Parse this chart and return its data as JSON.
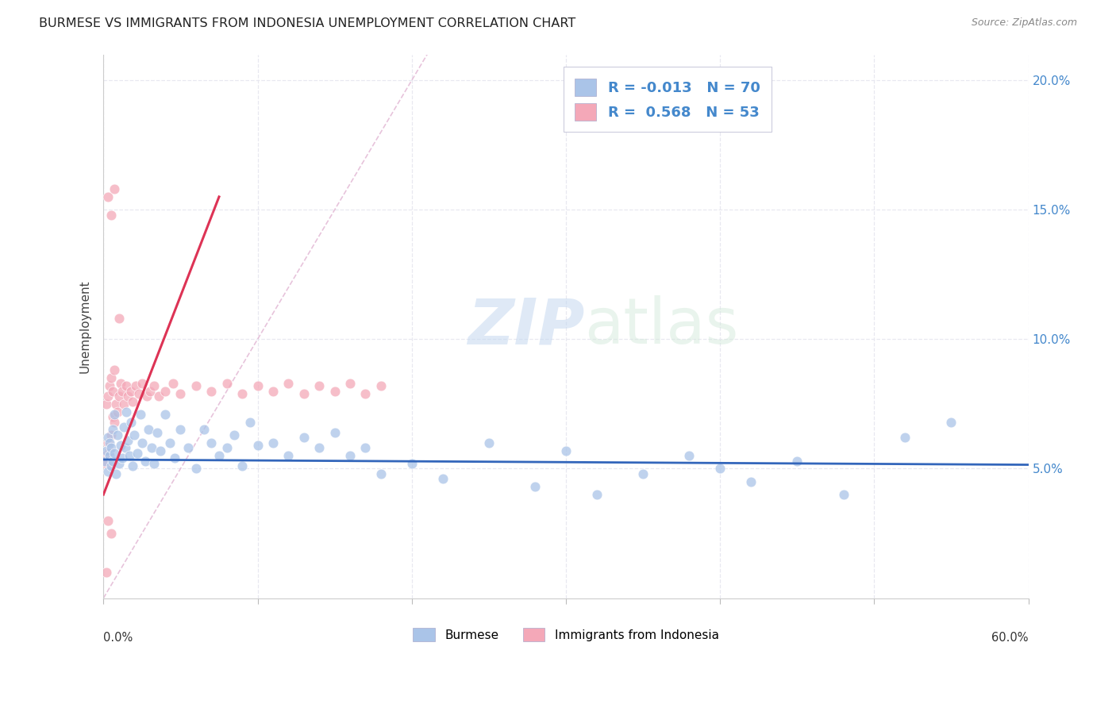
{
  "title": "BURMESE VS IMMIGRANTS FROM INDONESIA UNEMPLOYMENT CORRELATION CHART",
  "source": "Source: ZipAtlas.com",
  "ylabel": "Unemployment",
  "watermark_zip": "ZIP",
  "watermark_atlas": "atlas",
  "legend_blue_r": "-0.013",
  "legend_blue_n": "70",
  "legend_pink_r": "0.568",
  "legend_pink_n": "53",
  "blue_color": "#aac4e8",
  "pink_color": "#f4a8b8",
  "blue_line_color": "#3366bb",
  "pink_line_color": "#dd3355",
  "diag_line_color": "#ddaabb",
  "grid_color": "#e8e8f0",
  "background_color": "#ffffff",
  "axis_tick_color": "#4488cc",
  "title_color": "#222222",
  "source_color": "#888888",
  "title_fontsize": 11.5,
  "source_fontsize": 9,
  "ylabel_fontsize": 11,
  "xmin": 0.0,
  "xmax": 0.6,
  "ymin": 0.0,
  "ymax": 0.21,
  "yticks": [
    0.05,
    0.1,
    0.15,
    0.2
  ],
  "ytick_labels": [
    "5.0%",
    "10.0%",
    "15.0%",
    "20.0%"
  ],
  "blue_scatter_x": [
    0.001,
    0.002,
    0.003,
    0.003,
    0.004,
    0.004,
    0.005,
    0.005,
    0.006,
    0.006,
    0.007,
    0.007,
    0.008,
    0.009,
    0.01,
    0.011,
    0.012,
    0.013,
    0.014,
    0.015,
    0.016,
    0.017,
    0.018,
    0.019,
    0.02,
    0.022,
    0.024,
    0.025,
    0.027,
    0.029,
    0.031,
    0.033,
    0.035,
    0.037,
    0.04,
    0.043,
    0.046,
    0.05,
    0.055,
    0.06,
    0.065,
    0.07,
    0.075,
    0.08,
    0.085,
    0.09,
    0.095,
    0.1,
    0.11,
    0.12,
    0.13,
    0.14,
    0.15,
    0.16,
    0.17,
    0.18,
    0.2,
    0.22,
    0.25,
    0.28,
    0.3,
    0.32,
    0.35,
    0.38,
    0.4,
    0.42,
    0.45,
    0.48,
    0.52,
    0.55
  ],
  "blue_scatter_y": [
    0.053,
    0.057,
    0.049,
    0.062,
    0.055,
    0.06,
    0.051,
    0.058,
    0.053,
    0.065,
    0.056,
    0.071,
    0.048,
    0.063,
    0.052,
    0.059,
    0.054,
    0.066,
    0.058,
    0.072,
    0.061,
    0.055,
    0.068,
    0.051,
    0.063,
    0.056,
    0.071,
    0.06,
    0.053,
    0.065,
    0.058,
    0.052,
    0.064,
    0.057,
    0.071,
    0.06,
    0.054,
    0.065,
    0.058,
    0.05,
    0.065,
    0.06,
    0.055,
    0.058,
    0.063,
    0.051,
    0.068,
    0.059,
    0.06,
    0.055,
    0.062,
    0.058,
    0.064,
    0.055,
    0.058,
    0.048,
    0.052,
    0.046,
    0.06,
    0.043,
    0.057,
    0.04,
    0.048,
    0.055,
    0.05,
    0.045,
    0.053,
    0.04,
    0.062,
    0.068
  ],
  "blue_trendline_x": [
    0.0,
    0.6
  ],
  "blue_trendline_y": [
    0.0535,
    0.0515
  ],
  "pink_scatter_x": [
    0.001,
    0.002,
    0.002,
    0.003,
    0.003,
    0.004,
    0.004,
    0.005,
    0.005,
    0.006,
    0.006,
    0.007,
    0.007,
    0.008,
    0.009,
    0.01,
    0.011,
    0.012,
    0.013,
    0.015,
    0.016,
    0.018,
    0.019,
    0.021,
    0.023,
    0.025,
    0.028,
    0.03,
    0.033,
    0.036,
    0.04,
    0.045,
    0.05,
    0.06,
    0.07,
    0.08,
    0.09,
    0.1,
    0.11,
    0.12,
    0.13,
    0.14,
    0.15,
    0.16,
    0.17,
    0.18,
    0.003,
    0.005,
    0.007,
    0.01,
    0.003,
    0.005,
    0.002
  ],
  "pink_scatter_y": [
    0.055,
    0.052,
    0.075,
    0.06,
    0.078,
    0.057,
    0.082,
    0.063,
    0.085,
    0.07,
    0.08,
    0.068,
    0.088,
    0.075,
    0.072,
    0.078,
    0.083,
    0.08,
    0.075,
    0.082,
    0.078,
    0.08,
    0.076,
    0.082,
    0.079,
    0.083,
    0.078,
    0.08,
    0.082,
    0.078,
    0.08,
    0.083,
    0.079,
    0.082,
    0.08,
    0.083,
    0.079,
    0.082,
    0.08,
    0.083,
    0.079,
    0.082,
    0.08,
    0.083,
    0.079,
    0.082,
    0.155,
    0.148,
    0.158,
    0.108,
    0.03,
    0.025,
    0.01
  ],
  "pink_trendline_x": [
    0.0,
    0.075
  ],
  "pink_trendline_y": [
    0.04,
    0.155
  ],
  "diag_line_x": [
    0.0,
    0.21
  ],
  "diag_line_y": [
    0.0,
    0.21
  ]
}
